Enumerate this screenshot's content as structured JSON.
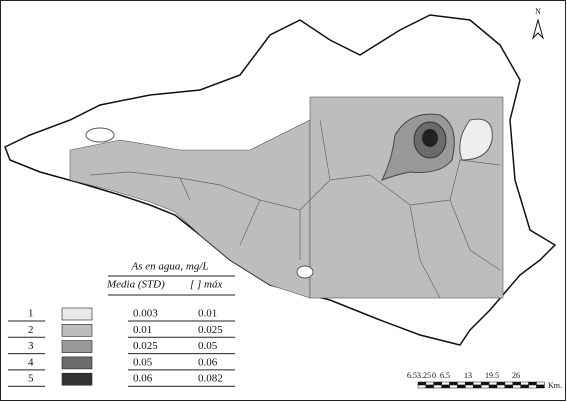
{
  "north": "N",
  "legend": {
    "title": "As en agua, mg/L",
    "headers": [
      "Media (STD)",
      "[ ] máx"
    ],
    "rows": [
      {
        "class": "1",
        "color": "#e8e8e8",
        "mean": "0.003",
        "max": "0.01"
      },
      {
        "class": "2",
        "color": "#bdbdbd",
        "mean": "0.01",
        "max": "0.025"
      },
      {
        "class": "3",
        "color": "#999999",
        "mean": "0.025",
        "max": "0.05"
      },
      {
        "class": "4",
        "color": "#6b6b6b",
        "mean": "0.05",
        "max": "0.06"
      },
      {
        "class": "5",
        "color": "#333333",
        "mean": "0.06",
        "max": "0.082"
      }
    ]
  },
  "scale": {
    "labels": [
      "6.5",
      "3.25",
      "0",
      "6.5",
      "13",
      "19.5",
      "26"
    ],
    "unit": "Km."
  }
}
